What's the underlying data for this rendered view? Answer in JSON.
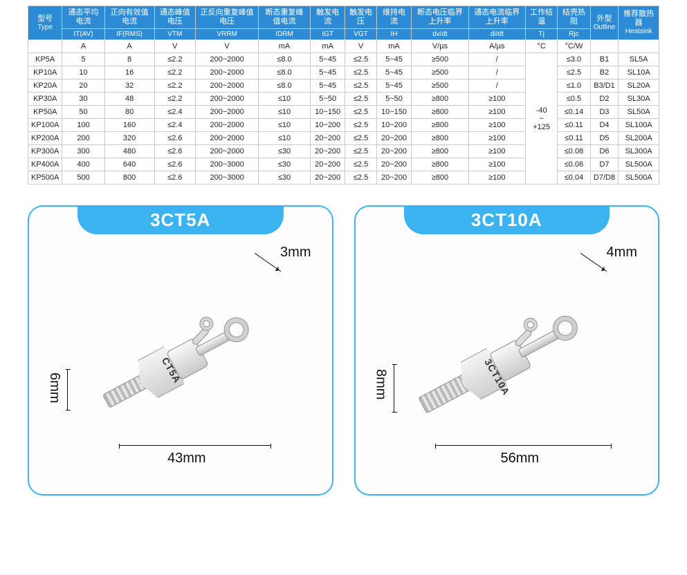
{
  "table": {
    "head_top": [
      {
        "cn": "型号",
        "en": "Type"
      },
      {
        "cn": "通态平均电流",
        "en": ""
      },
      {
        "cn": "正向有效值电流",
        "en": ""
      },
      {
        "cn": "通态峰值电压",
        "en": ""
      },
      {
        "cn": "正反向重复峰值电压",
        "en": ""
      },
      {
        "cn": "断态重复峰值电流",
        "en": ""
      },
      {
        "cn": "触发电流",
        "en": ""
      },
      {
        "cn": "触发电压",
        "en": ""
      },
      {
        "cn": "维持电流",
        "en": ""
      },
      {
        "cn": "断态电压临界上升率",
        "en": ""
      },
      {
        "cn": "通态电流临界上升率",
        "en": ""
      },
      {
        "cn": "工作结温",
        "en": ""
      },
      {
        "cn": "结壳热阻",
        "en": ""
      },
      {
        "cn": "外型",
        "en": "Outline"
      },
      {
        "cn": "推荐散热器",
        "en": "Heatsink"
      }
    ],
    "head_sub": [
      "",
      "IT(AV)",
      "IF(RMS)",
      "VTM",
      "VRRM",
      "IDRM",
      "IGT",
      "VGT",
      "IH",
      "dv/dt",
      "di/dt",
      "Tj",
      "Rjc",
      "",
      ""
    ],
    "units": [
      "",
      "A",
      "A",
      "V",
      "V",
      "mA",
      "mA",
      "V",
      "mA",
      "V/µs",
      "A/µs",
      "°C",
      "°C/W",
      "",
      ""
    ],
    "tj_merged": "-40\n~\n+125",
    "rows": [
      [
        "KP5A",
        "5",
        "8",
        "≤2.2",
        "200~2000",
        "≤8.0",
        "5~45",
        "≤2.5",
        "5~45",
        "≥500",
        "/",
        "",
        "≤3.0",
        "B1",
        "SL5A"
      ],
      [
        "KP10A",
        "10",
        "16",
        "≤2.2",
        "200~2000",
        "≤8.0",
        "5~45",
        "≤2.5",
        "5~45",
        "≥500",
        "/",
        "",
        "≤2.5",
        "B2",
        "SL10A"
      ],
      [
        "KP20A",
        "20",
        "32",
        "≤2.2",
        "200~2000",
        "≤8.0",
        "5~45",
        "≤2.5",
        "5~45",
        "≥500",
        "/",
        "",
        "≤1.0",
        "B3/D1",
        "SL20A"
      ],
      [
        "KP30A",
        "30",
        "48",
        "≤2.2",
        "200~2000",
        "≤10",
        "5~50",
        "≤2.5",
        "5~50",
        "≥800",
        "≥100",
        "",
        "≤0.5",
        "D2",
        "SL30A"
      ],
      [
        "KP50A",
        "50",
        "80",
        "≤2.4",
        "200~2000",
        "≤10",
        "10~150",
        "≤2.5",
        "10~150",
        "≥800",
        "≥100",
        "",
        "≤0.14",
        "D3",
        "SL50A"
      ],
      [
        "KP100A",
        "100",
        "160",
        "≤2.4",
        "200~2000",
        "≤10",
        "10~200",
        "≤2.5",
        "10~200",
        "≥800",
        "≥100",
        "",
        "≤0.11",
        "D4",
        "SL100A"
      ],
      [
        "KP200A",
        "200",
        "320",
        "≤2.6",
        "200~2000",
        "≤10",
        "20~200",
        "≤2.5",
        "20~200",
        "≥800",
        "≥100",
        "",
        "≤0.11",
        "D5",
        "SL200A"
      ],
      [
        "KP300A",
        "300",
        "480",
        "≤2.6",
        "200~2000",
        "≤30",
        "20~200",
        "≤2.5",
        "20~200",
        "≥800",
        "≥100",
        "",
        "≤0.08",
        "D6",
        "SL300A"
      ],
      [
        "KP400A",
        "400",
        "640",
        "≤2.6",
        "200~3000",
        "≤30",
        "20~200",
        "≤2.5",
        "20~200",
        "≥800",
        "≥100",
        "",
        "≤0.06",
        "D7",
        "SL500A"
      ],
      [
        "KP500A",
        "500",
        "800",
        "≤2.6",
        "200~3000",
        "≤30",
        "20~200",
        "≤2.5",
        "20~200",
        "≥800",
        "≥100",
        "",
        "≤0.04",
        "D7/D8",
        "SL500A"
      ]
    ]
  },
  "cards": [
    {
      "title": "3CT5A",
      "part_marking": "CT5A",
      "dims": {
        "stud_dia": "6mm",
        "length": "43mm",
        "ring_hole": "3mm"
      }
    },
    {
      "title": "3CT10A",
      "part_marking": "3CT10A",
      "dims": {
        "stud_dia": "8mm",
        "length": "56mm",
        "ring_hole": "4mm"
      }
    }
  ],
  "colors": {
    "header_bg": "#2d8bd6",
    "header_fg": "#ffffff",
    "border": "#c9c9c9",
    "card_border": "#3bb3f0",
    "tab_bg": "#3bb3f0"
  }
}
